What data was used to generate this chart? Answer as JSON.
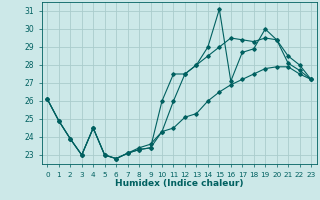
{
  "xlabel": "Humidex (Indice chaleur)",
  "xlim": [
    -0.5,
    23.5
  ],
  "ylim": [
    22.5,
    31.5
  ],
  "yticks": [
    23,
    24,
    25,
    26,
    27,
    28,
    29,
    30,
    31
  ],
  "xticks": [
    0,
    1,
    2,
    3,
    4,
    5,
    6,
    7,
    8,
    9,
    10,
    11,
    12,
    13,
    14,
    15,
    16,
    17,
    18,
    19,
    20,
    21,
    22,
    23
  ],
  "bg_color": "#cce8e8",
  "grid_color": "#aacccc",
  "line_color": "#006060",
  "series": [
    {
      "x": [
        0,
        1,
        2,
        3,
        4,
        5,
        6,
        7,
        8,
        9,
        10,
        11,
        12,
        13,
        14,
        15,
        16,
        17,
        18,
        19,
        20,
        21,
        22,
        23
      ],
      "y": [
        26.1,
        24.9,
        23.9,
        23.0,
        24.5,
        23.0,
        22.8,
        23.1,
        23.3,
        23.4,
        26.0,
        27.5,
        27.5,
        28.0,
        29.0,
        31.1,
        27.1,
        28.7,
        28.9,
        30.0,
        29.4,
        28.1,
        27.7,
        27.2
      ]
    },
    {
      "x": [
        0,
        1,
        2,
        3,
        4,
        5,
        6,
        7,
        8,
        9,
        10,
        11,
        12,
        13,
        14,
        15,
        16,
        17,
        18,
        19,
        20,
        21,
        22,
        23
      ],
      "y": [
        26.1,
        24.9,
        23.9,
        23.0,
        24.5,
        23.0,
        22.8,
        23.1,
        23.4,
        23.6,
        24.3,
        24.5,
        25.1,
        25.3,
        26.0,
        26.5,
        26.9,
        27.2,
        27.5,
        27.8,
        27.9,
        27.9,
        27.5,
        27.2
      ]
    },
    {
      "x": [
        0,
        1,
        2,
        3,
        4,
        5,
        6,
        7,
        8,
        9,
        10,
        11,
        12,
        13,
        14,
        15,
        16,
        17,
        18,
        19,
        20,
        21,
        22,
        23
      ],
      "y": [
        26.1,
        24.9,
        23.9,
        23.0,
        24.5,
        23.0,
        22.8,
        23.1,
        23.3,
        23.4,
        24.3,
        26.0,
        27.5,
        28.0,
        28.5,
        29.0,
        29.5,
        29.4,
        29.3,
        29.5,
        29.4,
        28.5,
        28.0,
        27.2
      ]
    }
  ]
}
